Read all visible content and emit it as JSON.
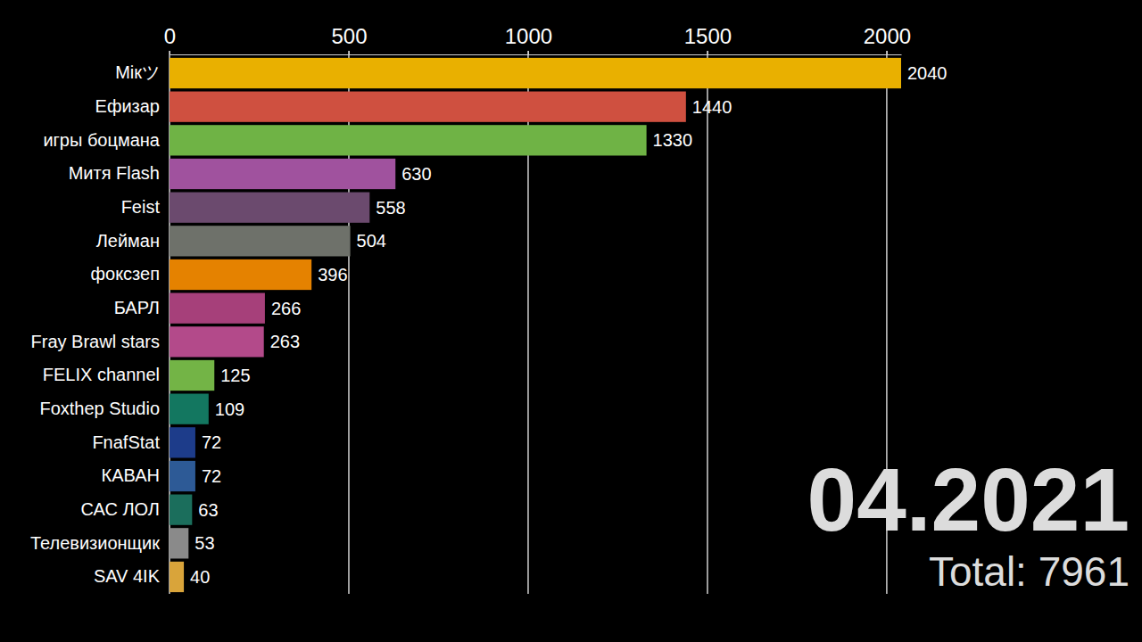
{
  "chart_data": {
    "type": "bar",
    "orientation": "horizontal",
    "categories": [
      "Мікツ",
      "Ефизар",
      "игры боцмана",
      "Митя Flash",
      "Feist",
      "Лейман",
      "фоксзеп",
      "БАРЛ",
      "Fray Brawl stars",
      "FELIX channel",
      "Foxthep Studio",
      "FnafStat",
      "КАВАН",
      "САС ЛОЛ",
      "Телевизионщик",
      "SAV 4IK"
    ],
    "values": [
      2040,
      1440,
      1330,
      630,
      558,
      504,
      396,
      266,
      263,
      125,
      109,
      72,
      72,
      63,
      53,
      40
    ],
    "colors": [
      "#e9b000",
      "#cf5040",
      "#6fb345",
      "#a0529e",
      "#6b4a6e",
      "#6e716a",
      "#e58200",
      "#a6407a",
      "#b34a8a",
      "#73b446",
      "#137760",
      "#1d3c8a",
      "#2d5a96",
      "#1b6e5c",
      "#8a8a8a",
      "#d9a43a"
    ],
    "xlim": [
      0,
      2040
    ],
    "xticks": [
      0,
      500,
      1000,
      1500,
      2000
    ],
    "grid": true,
    "data_labels": true,
    "annotations": [
      {
        "text": "04.2021"
      },
      {
        "text": "Total: 7961"
      }
    ]
  }
}
